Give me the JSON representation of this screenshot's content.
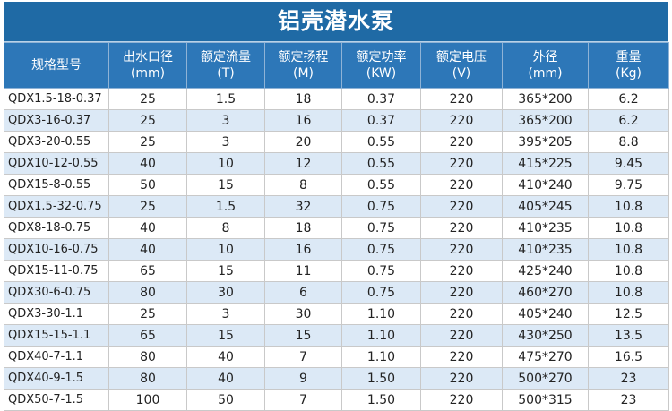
{
  "title": "铝壳潜水泵",
  "header": [
    {
      "line1": "规格型号",
      "line2": ""
    },
    {
      "line1": "出水口径",
      "line2": "(mm)"
    },
    {
      "line1": "额定流量",
      "line2": "(T)"
    },
    {
      "line1": "额定扬程",
      "line2": "(M)"
    },
    {
      "line1": "额定功率",
      "line2": "(KW)"
    },
    {
      "line1": "额定电压",
      "line2": "(V)"
    },
    {
      "line1": "外径",
      "line2": "(mm)"
    },
    {
      "line1": "重量",
      "line2": "(Kg)"
    }
  ],
  "rows": [
    [
      "QDX1.5-18-0.37",
      "25",
      "1.5",
      "18",
      "0.37",
      "220",
      "365*200",
      "6.2"
    ],
    [
      "QDX3-16-0.37",
      "25",
      "3",
      "16",
      "0.37",
      "220",
      "365*200",
      "6.2"
    ],
    [
      "QDX3-20-0.55",
      "25",
      "3",
      "20",
      "0.55",
      "220",
      "395*205",
      "8.8"
    ],
    [
      "QDX10-12-0.55",
      "40",
      "10",
      "12",
      "0.55",
      "220",
      "415*225",
      "9.45"
    ],
    [
      "QDX15-8-0.55",
      "50",
      "15",
      "8",
      "0.55",
      "220",
      "410*240",
      "9.75"
    ],
    [
      "QDX1.5-32-0.75",
      "25",
      "1.5",
      "32",
      "0.75",
      "220",
      "405*245",
      "10.8"
    ],
    [
      "QDX8-18-0.75",
      "40",
      "8",
      "18",
      "0.75",
      "220",
      "410*235",
      "10.8"
    ],
    [
      "QDX10-16-0.75",
      "40",
      "10",
      "16",
      "0.75",
      "220",
      "410*235",
      "10.8"
    ],
    [
      "QDX15-11-0.75",
      "65",
      "15",
      "11",
      "0.75",
      "220",
      "425*240",
      "10.8"
    ],
    [
      "QDX30-6-0.75",
      "80",
      "30",
      "6",
      "0.75",
      "220",
      "460*270",
      "10.8"
    ],
    [
      "QDX3-30-1.1",
      "25",
      "3",
      "30",
      "1.10",
      "220",
      "405*240",
      "12.5"
    ],
    [
      "QDX15-15-1.1",
      "65",
      "15",
      "15",
      "1.10",
      "220",
      "430*250",
      "13.5"
    ],
    [
      "QDX40-7-1.1",
      "80",
      "40",
      "7",
      "1.10",
      "220",
      "475*270",
      "16.5"
    ],
    [
      "QDX40-9-1.5",
      "80",
      "40",
      "9",
      "1.50",
      "220",
      "500*270",
      "23"
    ],
    [
      "QDX50-7-1.5",
      "100",
      "50",
      "7",
      "1.50",
      "220",
      "500*315",
      "23"
    ]
  ],
  "colors": {
    "title_background": "#1f6aa5",
    "header_background": "#2d77b8",
    "stripe_background": "#dce9f6"
  }
}
